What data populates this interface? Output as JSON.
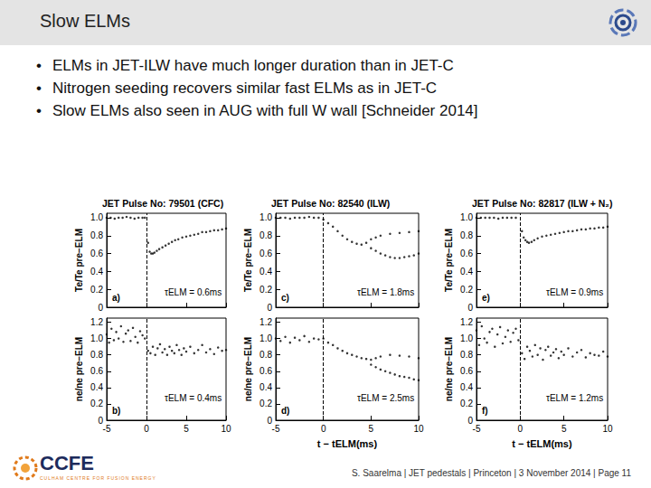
{
  "header": {
    "title": "Slow ELMs"
  },
  "bullets": [
    "ELMs in JET-ILW have much longer duration than in JET-C",
    "Nitrogen seeding recovers similar fast ELMs as in JET-C",
    "Slow ELMs also seen in AUG with full W wall [Schneider 2014]"
  ],
  "footer": {
    "text": "S. Saarelma | JET pedestals | Princeton | 3 November 2014 | Page 11",
    "logo": "CCFE",
    "logo_subtitle": "CULHAM CENTRE FOR FUSION ENERGY"
  },
  "chart_data": [
    {
      "type": "scatter",
      "title": "JET Pulse No: 79501 (CFC)",
      "panel_label": "a)",
      "annotation": "τELM = 0.6ms",
      "ylabel": "Te/Te pre−ELM",
      "x": [
        -5,
        -4.5,
        -4,
        -3.5,
        -3,
        -2.5,
        -2,
        -1.5,
        -1,
        -0.5,
        -0.2,
        0.2,
        0.4,
        0.6,
        0.8,
        1,
        1.3,
        1.6,
        2,
        2.4,
        2.8,
        3.2,
        3.6,
        4,
        4.5,
        5,
        5.5,
        6,
        6.5,
        7,
        7.5,
        8,
        8.5,
        9,
        9.5,
        10
      ],
      "values": [
        1,
        1,
        0.99,
        1,
        1,
        1.01,
        1,
        0.99,
        1,
        1,
        1,
        0.72,
        0.62,
        0.6,
        0.6,
        0.61,
        0.63,
        0.65,
        0.67,
        0.69,
        0.71,
        0.73,
        0.75,
        0.76,
        0.78,
        0.79,
        0.8,
        0.81,
        0.82,
        0.84,
        0.84,
        0.85,
        0.86,
        0.86,
        0.87,
        0.88
      ],
      "color": "#000000",
      "marker": "circle",
      "vlines": [
        0
      ],
      "grid": false,
      "tick_labels": "y",
      "xlim": [
        -5,
        10
      ],
      "xticks": [
        -5,
        0,
        5,
        10
      ],
      "ylim": [
        0,
        1.05
      ],
      "yticks": [
        0,
        0.2,
        0.4,
        0.6,
        0.8,
        {
          "value": 1,
          "label": "1.0"
        }
      ]
    },
    {
      "type": "scatter",
      "panel_label": "b)",
      "annotation": "τELM = 0.4ms",
      "ylabel": "ne/ne pre−ELM",
      "x": [
        -5,
        -4.7,
        -4.4,
        -4.1,
        -3.8,
        -3.5,
        -3.2,
        -2.9,
        -2.6,
        -2.3,
        -2,
        -1.7,
        -1.4,
        -1.1,
        -0.8,
        -0.5,
        -0.2,
        0.2,
        0.5,
        0.8,
        1.1,
        1.4,
        1.7,
        2,
        2.3,
        2.6,
        2.9,
        3.2,
        3.5,
        3.8,
        4.1,
        4.4,
        4.7,
        5,
        5.5,
        6,
        6.5,
        7,
        7.5,
        8,
        8.5,
        9,
        9.5,
        10
      ],
      "values": [
        1.05,
        0.95,
        1.12,
        0.98,
        1.08,
        1.0,
        1.15,
        0.96,
        1.06,
        1.1,
        0.97,
        1.13,
        1.02,
        0.95,
        1.09,
        1.04,
        1.0,
        0.85,
        0.82,
        0.9,
        0.8,
        0.88,
        0.93,
        0.83,
        0.87,
        0.8,
        0.9,
        0.85,
        0.82,
        0.92,
        0.86,
        0.8,
        0.88,
        0.84,
        0.9,
        0.82,
        0.86,
        0.92,
        0.83,
        0.87,
        0.81,
        0.89,
        0.85,
        0.86
      ],
      "color": "#000000",
      "marker": "circle",
      "vlines": [
        0
      ],
      "grid": false,
      "xlim": [
        -5,
        10
      ],
      "xticks": [
        -5,
        0,
        5,
        10
      ],
      "ylim": [
        0,
        1.25
      ],
      "yticks": [
        0,
        0.2,
        0.4,
        0.6,
        0.8,
        {
          "value": 1,
          "label": "1.0"
        },
        1.2
      ]
    },
    {
      "type": "scatter",
      "title": "JET Pulse No: 82540 (ILW)",
      "panel_label": "c)",
      "annotation": "τELM = 1.8ms",
      "ylabel": "Te/Te pre−ELM",
      "x": [
        -5,
        -4.5,
        -4,
        -3.5,
        -3,
        -2.5,
        -2,
        -1.5,
        -1,
        -0.5,
        0,
        0.5,
        1,
        1.5,
        2,
        2.5,
        3,
        3.5,
        4,
        4.5,
        5,
        5.5,
        6,
        7,
        8,
        9,
        10,
        5,
        5.5,
        6,
        6.5,
        7,
        7.5,
        8,
        8.5,
        9,
        9.5,
        10
      ],
      "values": [
        1,
        1,
        1,
        0.99,
        1,
        1,
        1,
        1.01,
        1,
        1,
        0.98,
        0.94,
        0.9,
        0.85,
        0.8,
        0.76,
        0.73,
        0.71,
        0.7,
        0.72,
        0.76,
        0.78,
        0.8,
        0.82,
        0.83,
        0.84,
        0.85,
        0.66,
        0.63,
        0.6,
        0.58,
        0.56,
        0.55,
        0.55,
        0.56,
        0.57,
        0.58,
        0.6
      ],
      "color": "#000000",
      "marker": "circle",
      "vlines": [
        0
      ],
      "grid": false,
      "tick_labels": "y",
      "xlim": [
        -5,
        10
      ],
      "xticks": [
        -5,
        0,
        5,
        10
      ],
      "ylim": [
        0,
        1.05
      ],
      "yticks": [
        0,
        0.2,
        0.4,
        0.6,
        0.8,
        {
          "value": 1,
          "label": "1.0"
        }
      ]
    },
    {
      "type": "scatter",
      "panel_label": "d)",
      "annotation": "τELM = 2.5ms",
      "ylabel": "ne/ne pre−ELM",
      "xlabel": "t − tELM(ms)",
      "x": [
        -5,
        -4.5,
        -4,
        -3.5,
        -3,
        -2.5,
        -2,
        -1.5,
        -1,
        -0.5,
        0,
        0.5,
        1,
        1.5,
        2,
        2.5,
        3,
        3.5,
        4,
        4.5,
        5,
        5.5,
        6,
        7,
        8,
        9,
        10,
        5,
        5.5,
        6,
        6.5,
        7,
        7.5,
        8,
        8.5,
        9,
        9.5,
        10
      ],
      "values": [
        1.0,
        0.97,
        1.02,
        0.95,
        1.01,
        0.98,
        1.03,
        0.96,
        1.0,
        0.99,
        1.0,
        0.95,
        0.92,
        0.88,
        0.85,
        0.82,
        0.8,
        0.78,
        0.76,
        0.75,
        0.74,
        0.76,
        0.78,
        0.8,
        0.79,
        0.78,
        0.76,
        0.68,
        0.65,
        0.62,
        0.6,
        0.58,
        0.56,
        0.54,
        0.53,
        0.52,
        0.5,
        0.49
      ],
      "color": "#000000",
      "marker": "circle",
      "vlines": [
        0
      ],
      "grid": false,
      "xlim": [
        -5,
        10
      ],
      "xticks": [
        -5,
        0,
        5,
        10
      ],
      "ylim": [
        0,
        1.25
      ],
      "yticks": [
        0,
        0.2,
        0.4,
        0.6,
        0.8,
        {
          "value": 1,
          "label": "1.0"
        },
        1.2
      ]
    },
    {
      "type": "scatter",
      "title": "JET Pulse No: 82817 (ILW + N₂)",
      "panel_label": "e)",
      "annotation": "τELM = 0.9ms",
      "ylabel": "Te/Te pre−ELM",
      "x": [
        -5,
        -4.5,
        -4,
        -3.5,
        -3,
        -2.5,
        -2,
        -1.5,
        -1,
        -0.5,
        0.2,
        0.4,
        0.6,
        0.8,
        1,
        1.3,
        1.6,
        2,
        2.5,
        3,
        3.5,
        4,
        4.5,
        5,
        5.5,
        6,
        6.5,
        7,
        7.5,
        8,
        8.5,
        9,
        9.5,
        10
      ],
      "values": [
        1,
        1,
        1,
        1,
        1,
        0.99,
        1,
        1,
        1,
        1,
        0.85,
        0.78,
        0.75,
        0.73,
        0.72,
        0.73,
        0.75,
        0.77,
        0.79,
        0.8,
        0.81,
        0.82,
        0.83,
        0.84,
        0.85,
        0.85,
        0.86,
        0.87,
        0.87,
        0.88,
        0.88,
        0.89,
        0.89,
        0.9
      ],
      "color": "#000000",
      "marker": "circle",
      "vlines": [
        0
      ],
      "grid": false,
      "tick_labels": "y",
      "xlim": [
        -5,
        10
      ],
      "xticks": [
        -5,
        0,
        5,
        10
      ],
      "ylim": [
        0,
        1.05
      ],
      "yticks": [
        0,
        0.2,
        0.4,
        0.6,
        0.8,
        {
          "value": 1,
          "label": "1.0"
        }
      ]
    },
    {
      "type": "scatter",
      "panel_label": "f)",
      "annotation": "τELM = 1.2ms",
      "ylabel": "ne/ne pre−ELM",
      "xlabel": "t − tELM(ms)",
      "x": [
        -5,
        -4.7,
        -4.4,
        -4.1,
        -3.8,
        -3.5,
        -3.2,
        -2.9,
        -2.6,
        -2.3,
        -2,
        -1.7,
        -1.4,
        -1.1,
        -0.8,
        -0.5,
        -0.2,
        0.2,
        0.5,
        0.8,
        1.1,
        1.4,
        1.7,
        2,
        2.3,
        2.6,
        2.9,
        3.2,
        3.5,
        3.8,
        4.1,
        4.4,
        4.7,
        5,
        5.5,
        6,
        6.5,
        7,
        7.5,
        8,
        8.5,
        9,
        9.5,
        10
      ],
      "values": [
        1.1,
        0.92,
        1.15,
        1.0,
        0.95,
        1.08,
        1.12,
        0.9,
        1.05,
        1.14,
        0.94,
        1.02,
        1.1,
        0.96,
        1.07,
        1.12,
        0.98,
        0.82,
        0.75,
        0.9,
        0.85,
        0.78,
        0.92,
        0.8,
        0.88,
        0.74,
        0.86,
        0.9,
        0.79,
        0.83,
        0.87,
        0.76,
        0.84,
        0.8,
        0.88,
        0.78,
        0.83,
        0.86,
        0.77,
        0.82,
        0.8,
        0.79,
        0.84,
        0.78
      ],
      "color": "#000000",
      "marker": "circle",
      "vlines": [
        0
      ],
      "grid": false,
      "xlim": [
        -5,
        10
      ],
      "xticks": [
        -5,
        0,
        5,
        10
      ],
      "ylim": [
        0,
        1.25
      ],
      "yticks": [
        0,
        0.2,
        0.4,
        0.6,
        0.8,
        {
          "value": 1,
          "label": "1.0"
        },
        1.2
      ]
    }
  ]
}
